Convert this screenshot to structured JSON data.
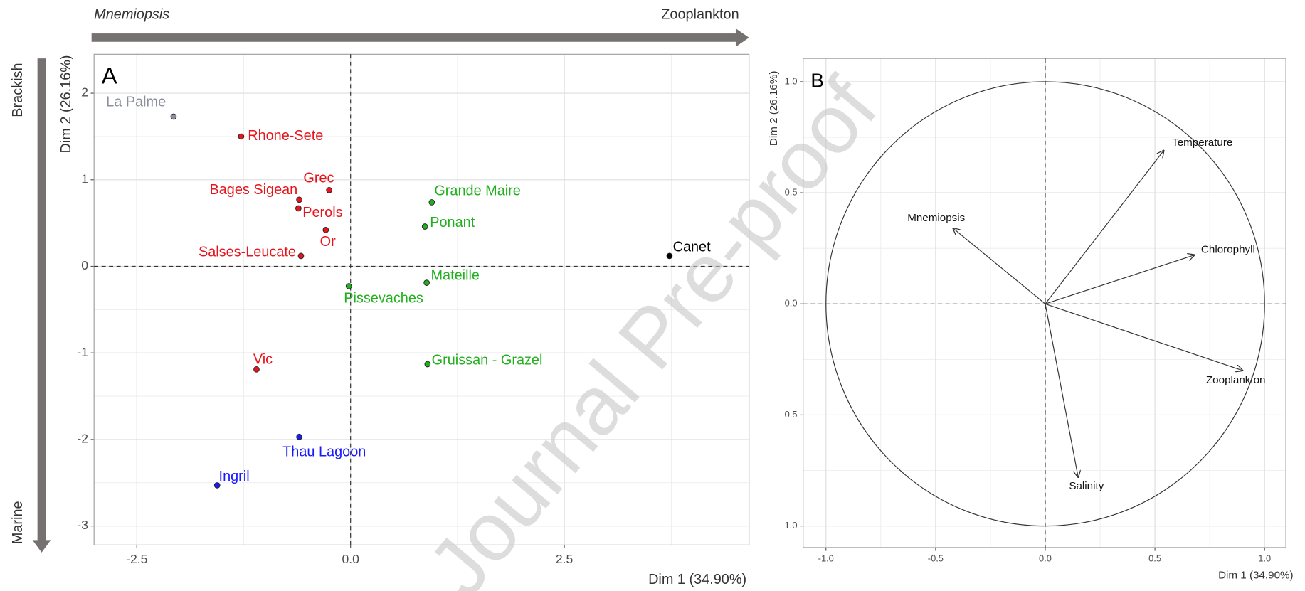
{
  "header": {
    "top_arrow": {
      "left": "Mnemiopsis",
      "right": "Zooplankton"
    },
    "side_arrow": {
      "top": "Brackish",
      "bottom": "Marine"
    },
    "watermark": "Journal Pre-proof"
  },
  "chart_data": [
    {
      "type": "scatter",
      "title": "A",
      "xlabel": "Dim 1 (34.90%)",
      "ylabel": "Dim 2 (26.16%)",
      "xlim": [
        -3.0,
        4.66
      ],
      "ylim": [
        -3.22,
        2.45
      ],
      "xticks": [
        -2.5,
        {
          "value": 0,
          "label": "0.0"
        },
        2.5
      ],
      "yticks": [
        -3,
        -2,
        -1,
        0,
        1,
        2
      ],
      "grid": true,
      "points": [
        {
          "label": "La Palme",
          "x": -2.07,
          "y": 1.73,
          "color": "#8a8f99"
        },
        {
          "label": "Rhone-Sete",
          "x": -1.28,
          "y": 1.5,
          "color": "#e8141b"
        },
        {
          "label": "Grec",
          "x": -0.25,
          "y": 0.88,
          "color": "#e8141b"
        },
        {
          "label": "Bages Sigean",
          "x": -0.6,
          "y": 0.77,
          "color": "#e8141b"
        },
        {
          "label": "Perols",
          "x": -0.61,
          "y": 0.67,
          "color": "#e8141b"
        },
        {
          "label": "Or",
          "x": -0.29,
          "y": 0.42,
          "color": "#e8141b"
        },
        {
          "label": "Salses-Leucate",
          "x": -0.58,
          "y": 0.12,
          "color": "#e8141b"
        },
        {
          "label": "Vic",
          "x": -1.1,
          "y": -1.19,
          "color": "#e8141b"
        },
        {
          "label": "Thau Lagoon",
          "x": -0.6,
          "y": -1.97,
          "color": "#1a1aff"
        },
        {
          "label": "Ingril",
          "x": -1.56,
          "y": -2.53,
          "color": "#1a1aff"
        },
        {
          "label": "Grande Maire",
          "x": 0.95,
          "y": 0.74,
          "color": "#22b01e"
        },
        {
          "label": "Ponant",
          "x": 0.87,
          "y": 0.46,
          "color": "#22b01e"
        },
        {
          "label": "Mateille",
          "x": 0.89,
          "y": -0.19,
          "color": "#22b01e"
        },
        {
          "label": "Pissevaches",
          "x": -0.02,
          "y": -0.23,
          "color": "#22b01e"
        },
        {
          "label": "Gruissan - Grazel",
          "x": 0.9,
          "y": -1.13,
          "color": "#22b01e"
        },
        {
          "label": "Canet",
          "x": 3.73,
          "y": 0.12,
          "color": "#000000"
        }
      ]
    },
    {
      "type": "vectors",
      "title": "B",
      "xlabel": "Dim 1 (34.90%)",
      "ylabel": "Dim 2 (26.16%)",
      "xlim": [
        -1.104,
        1.097
      ],
      "ylim": [
        -1.097,
        1.105
      ],
      "xticks": [
        {
          "value": -1,
          "label": "-1.0"
        },
        -0.5,
        {
          "value": 0,
          "label": "0.0"
        },
        0.5,
        {
          "value": 1,
          "label": "1.0"
        }
      ],
      "yticks": [
        {
          "value": -1,
          "label": "-1.0"
        },
        -0.5,
        {
          "value": 0,
          "label": "0.0"
        },
        0.5,
        {
          "value": 1,
          "label": "1.0"
        }
      ],
      "grid": true,
      "vectors": [
        {
          "label": "Temperature",
          "x": 0.54,
          "y": 0.69
        },
        {
          "label": "Mnemiopsis",
          "x": -0.42,
          "y": 0.34
        },
        {
          "label": "Chlorophyll",
          "x": 0.68,
          "y": 0.22
        },
        {
          "label": "Zooplankton",
          "x": 0.9,
          "y": -0.3
        },
        {
          "label": "Salinity",
          "x": 0.15,
          "y": -0.78
        }
      ]
    }
  ]
}
